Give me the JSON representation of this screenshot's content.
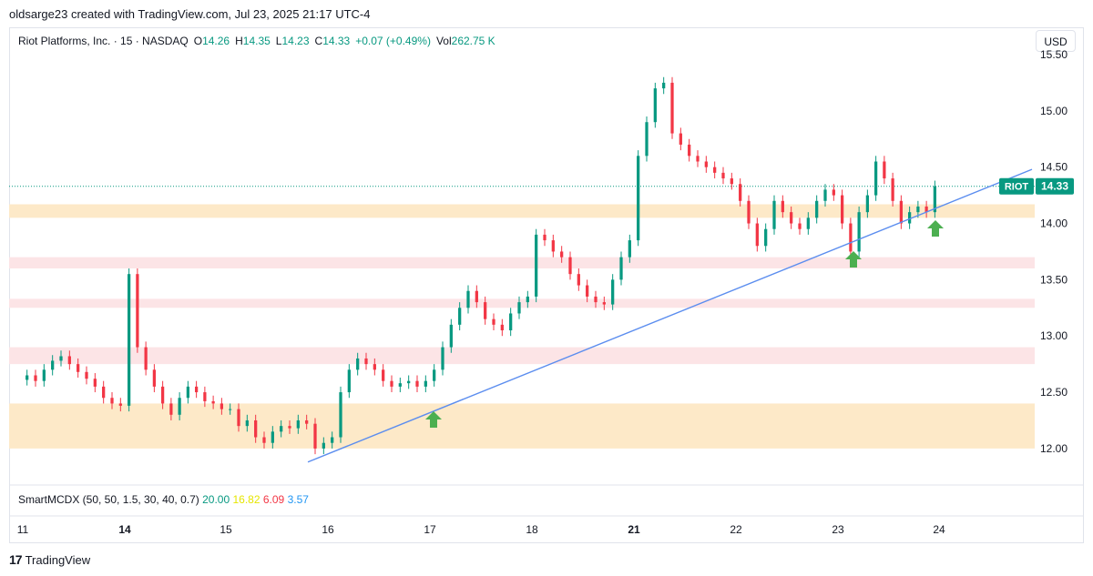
{
  "header": {
    "attribution": "oldsarge23 created with TradingView.com, Jul 23, 2025 21:17 UTC-4"
  },
  "legend": {
    "symbol": "Riot Platforms, Inc. · 15 · NASDAQ",
    "open_label": "O",
    "open": "14.26",
    "high_label": "H",
    "high": "14.35",
    "low_label": "L",
    "low": "14.23",
    "close_label": "C",
    "close": "14.33",
    "change": "+0.07 (+0.49%)",
    "vol_label": "Vol",
    "volume": "262.75 K"
  },
  "currency_button": "USD",
  "indicator": {
    "name": "SmartMCDX (50, 50, 1.5, 30, 40, 0.7)",
    "values": [
      "20.00",
      "16.82",
      "6.09",
      "3.57"
    ],
    "colors": [
      "#089981",
      "#e6e600",
      "#f23645",
      "#2196f3"
    ]
  },
  "footer": {
    "brand": "TradingView",
    "logo": "17"
  },
  "colors": {
    "up": "#089981",
    "down": "#f23645",
    "trendline": "#5b8def",
    "orange_zone": "#fde9c8",
    "red_zone": "#fce4e6",
    "arrow": "#4caf50"
  },
  "chart_data": {
    "type": "candlestick",
    "ticker": "RIOT",
    "last_price": "14.33",
    "ylim": [
      11.7,
      15.5
    ],
    "y_ticks": [
      "12.00",
      "12.50",
      "13.00",
      "13.50",
      "14.00",
      "14.50",
      "15.00",
      "15.50"
    ],
    "x_ticks": [
      "11",
      "14",
      "15",
      "16",
      "17",
      "18",
      "21",
      "22",
      "23",
      "24"
    ],
    "x_ticks_bold": [
      "14",
      "21"
    ],
    "day_closes": [
      {
        "day": "11",
        "values": [
          12.65,
          12.6,
          12.7,
          12.78,
          12.82,
          12.75,
          12.68,
          12.62,
          12.55,
          12.45,
          12.4,
          12.38
        ]
      },
      {
        "day": "14",
        "values": [
          13.55,
          12.9,
          12.7,
          12.55,
          12.4,
          12.3,
          12.45,
          12.55,
          12.5,
          12.42,
          12.4,
          12.35
        ]
      },
      {
        "day": "15",
        "values": [
          12.35,
          12.2,
          12.25,
          12.1,
          12.05,
          12.15,
          12.2,
          12.18,
          12.25,
          12.22,
          12.0,
          12.05
        ]
      },
      {
        "day": "16",
        "values": [
          12.1,
          12.5,
          12.7,
          12.8,
          12.75,
          12.7,
          12.6,
          12.55,
          12.58,
          12.6,
          12.55,
          12.6
        ]
      },
      {
        "day": "17",
        "values": [
          12.7,
          12.9,
          13.1,
          13.25,
          13.4,
          13.3,
          13.15,
          13.1,
          13.05,
          13.2,
          13.3,
          13.35
        ]
      },
      {
        "day": "18",
        "values": [
          13.9,
          13.85,
          13.75,
          13.7,
          13.55,
          13.45,
          13.35,
          13.3,
          13.28,
          13.5,
          13.7,
          13.85
        ]
      },
      {
        "day": "21",
        "values": [
          14.6,
          14.9,
          15.2,
          15.25,
          14.8,
          14.7,
          14.6,
          14.55,
          14.5,
          14.45,
          14.4,
          14.35
        ]
      },
      {
        "day": "22",
        "values": [
          14.2,
          14.0,
          13.8,
          13.95,
          14.2,
          14.1,
          14.0,
          13.95,
          14.05,
          14.2,
          14.3,
          14.25
        ]
      },
      {
        "day": "23",
        "values": [
          14.0,
          13.75,
          14.1,
          14.25,
          14.55,
          14.4,
          14.2,
          14.0,
          14.1,
          14.15,
          14.1,
          14.33
        ]
      }
    ],
    "support_zones": [
      {
        "kind": "orange",
        "from": 12.0,
        "to": 12.4
      },
      {
        "kind": "red",
        "from": 12.75,
        "to": 12.9
      },
      {
        "kind": "red",
        "from": 13.25,
        "to": 13.33
      },
      {
        "kind": "red",
        "from": 13.6,
        "to": 13.7
      },
      {
        "kind": "orange",
        "from": 14.05,
        "to": 14.17
      }
    ],
    "trendline": {
      "start_price": 11.88,
      "end_price": 14.48
    },
    "annotations": [
      "up-arrow",
      "up-arrow",
      "up-arrow"
    ]
  }
}
